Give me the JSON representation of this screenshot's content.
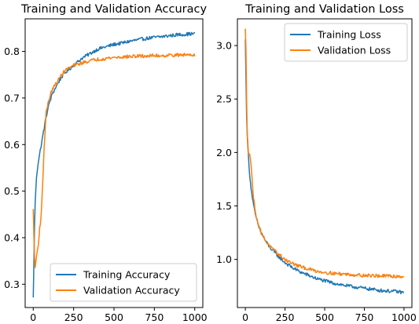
{
  "colors": {
    "training": "#1f77b4",
    "validation": "#ff7f0e"
  },
  "chart_data": [
    {
      "type": "line",
      "title": "Training and Validation Accuracy",
      "xlabel": "",
      "ylabel": "",
      "xlim": [
        -50,
        1050
      ],
      "ylim": [
        0.25,
        0.87
      ],
      "xticks": [
        0,
        250,
        500,
        750,
        1000
      ],
      "xtick_labels": [
        "0",
        "250",
        "500",
        "750",
        "1000"
      ],
      "yticks": [
        0.3,
        0.4,
        0.5,
        0.6,
        0.7,
        0.8
      ],
      "ytick_labels": [
        "0.3",
        "0.4",
        "0.5",
        "0.6",
        "0.7",
        "0.8"
      ],
      "grid": false,
      "legend_position": "lower-right",
      "x": [
        0,
        10,
        20,
        30,
        40,
        50,
        60,
        70,
        80,
        100,
        120,
        150,
        175,
        200,
        250,
        300,
        350,
        400,
        450,
        500,
        550,
        600,
        650,
        700,
        750,
        800,
        850,
        900,
        950,
        1000
      ],
      "series": [
        {
          "name": "Training Accuracy",
          "color_key": "training",
          "values": [
            0.27,
            0.46,
            0.53,
            0.56,
            0.58,
            0.6,
            0.62,
            0.64,
            0.66,
            0.69,
            0.71,
            0.73,
            0.745,
            0.755,
            0.77,
            0.785,
            0.795,
            0.805,
            0.81,
            0.815,
            0.818,
            0.822,
            0.825,
            0.828,
            0.83,
            0.832,
            0.834,
            0.836,
            0.837,
            0.838
          ]
        },
        {
          "name": "Validation Accuracy",
          "color_key": "validation",
          "values": [
            0.46,
            0.33,
            0.36,
            0.38,
            0.42,
            0.45,
            0.53,
            0.61,
            0.67,
            0.7,
            0.72,
            0.735,
            0.75,
            0.76,
            0.77,
            0.775,
            0.78,
            0.783,
            0.785,
            0.787,
            0.788,
            0.789,
            0.79,
            0.79,
            0.791,
            0.791,
            0.792,
            0.792,
            0.793,
            0.793
          ]
        }
      ]
    },
    {
      "type": "line",
      "title": "Training and Validation Loss",
      "xlabel": "",
      "ylabel": "",
      "xlim": [
        -50,
        1050
      ],
      "ylim": [
        0.55,
        3.25
      ],
      "xticks": [
        0,
        250,
        500,
        750,
        1000
      ],
      "xtick_labels": [
        "0",
        "250",
        "500",
        "750",
        "1000"
      ],
      "yticks": [
        1.0,
        1.5,
        2.0,
        2.5,
        3.0
      ],
      "ytick_labels": [
        "1.0",
        "1.5",
        "2.0",
        "2.5",
        "3.0"
      ],
      "grid": false,
      "legend_position": "upper-right",
      "x": [
        0,
        5,
        10,
        20,
        30,
        40,
        50,
        60,
        70,
        80,
        100,
        125,
        150,
        175,
        200,
        250,
        300,
        350,
        400,
        450,
        500,
        550,
        600,
        650,
        700,
        750,
        800,
        850,
        900,
        950,
        1000
      ],
      "series": [
        {
          "name": "Training Loss",
          "color_key": "training",
          "values": [
            3.05,
            2.6,
            2.2,
            1.95,
            1.75,
            1.62,
            1.52,
            1.44,
            1.38,
            1.33,
            1.25,
            1.18,
            1.12,
            1.08,
            1.04,
            0.97,
            0.92,
            0.88,
            0.85,
            0.82,
            0.8,
            0.78,
            0.765,
            0.75,
            0.74,
            0.73,
            0.72,
            0.71,
            0.705,
            0.7,
            0.69
          ]
        },
        {
          "name": "Validation Loss",
          "color_key": "validation",
          "values": [
            3.15,
            2.9,
            2.25,
            2.0,
            1.98,
            1.8,
            1.6,
            1.48,
            1.4,
            1.33,
            1.25,
            1.18,
            1.13,
            1.09,
            1.06,
            1.0,
            0.96,
            0.93,
            0.91,
            0.89,
            0.88,
            0.87,
            0.865,
            0.86,
            0.855,
            0.85,
            0.848,
            0.846,
            0.844,
            0.842,
            0.84
          ]
        }
      ]
    }
  ]
}
